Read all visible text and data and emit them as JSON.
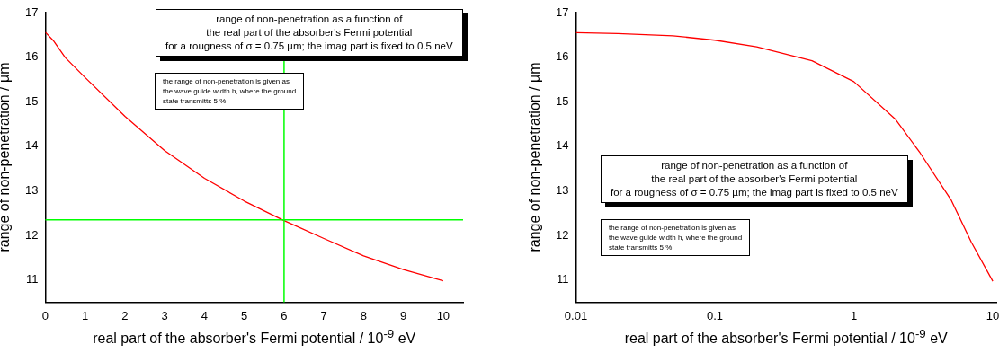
{
  "chart_data": [
    {
      "type": "line",
      "xlabel": "real part of the absorber's Fermi potential / 10$^{-9}$ eV",
      "ylabel": "range of non-penetration / µm",
      "annotations": [
        "range of non-penetration as a function of\nthe real part of the absorber's Fermi potential\nfor a rougness of σ = 0.75 µm; the imag part is fixed to 0.5 neV",
        "the range of non-penetration is given as\nthe wave guide width h, where the ground\nstate transmitts 5 %"
      ],
      "x": [
        0,
        0.2,
        0.5,
        1,
        2,
        3,
        4,
        5,
        6,
        7,
        8,
        9,
        10
      ],
      "series": [
        {
          "color": "#ff0000",
          "values": [
            16.56,
            16.37,
            15.99,
            15.54,
            14.67,
            13.9,
            13.28,
            12.77,
            12.33,
            11.93,
            11.54,
            11.23,
            10.98
          ]
        }
      ],
      "ref_lines": [
        {
          "axis": "x",
          "value": 6,
          "color": "#00ff00"
        },
        {
          "axis": "y",
          "value": 12.35,
          "color": "#00ff00"
        }
      ],
      "xlim": [
        0,
        10.5
      ],
      "xticks": [
        0,
        1,
        2,
        3,
        4,
        5,
        6,
        7,
        8,
        9,
        10
      ],
      "ylim": [
        10.5,
        17
      ],
      "yticks": [
        11,
        12,
        13,
        14,
        15,
        16,
        17
      ],
      "grid": false,
      "legend": false,
      "marker": "none",
      "line_style": "solid"
    },
    {
      "type": "line",
      "xlabel": "real part of the absorber's Fermi potential / 10$^{-9}$ eV",
      "ylabel": "range of non-penetration / µm",
      "annotations": [
        "range of non-penetration as a function of\nthe real part of the absorber's Fermi potential\nfor a rougness of σ = 0.75 µm; the imag part is fixed to 0.5 neV",
        "the range of non-penetration is given as\nthe wave guide width h, where the ground\nstate transmitts 5 %"
      ],
      "x": [
        0.01,
        0.02,
        0.05,
        0.1,
        0.2,
        0.5,
        1,
        2,
        3,
        5,
        7,
        10
      ],
      "series": [
        {
          "color": "#ff0000",
          "values": [
            16.55,
            16.53,
            16.48,
            16.38,
            16.23,
            15.92,
            15.45,
            14.6,
            13.85,
            12.8,
            11.85,
            10.97
          ]
        }
      ],
      "log": "x",
      "xlim": [
        0.01,
        10.6
      ],
      "xticks": [
        0.01,
        0.1,
        1,
        10
      ],
      "ylim": [
        10.5,
        17
      ],
      "yticks": [
        11,
        12,
        13,
        14,
        15,
        16,
        17
      ],
      "grid": false,
      "legend": false,
      "marker": "none",
      "line_style": "solid"
    }
  ]
}
